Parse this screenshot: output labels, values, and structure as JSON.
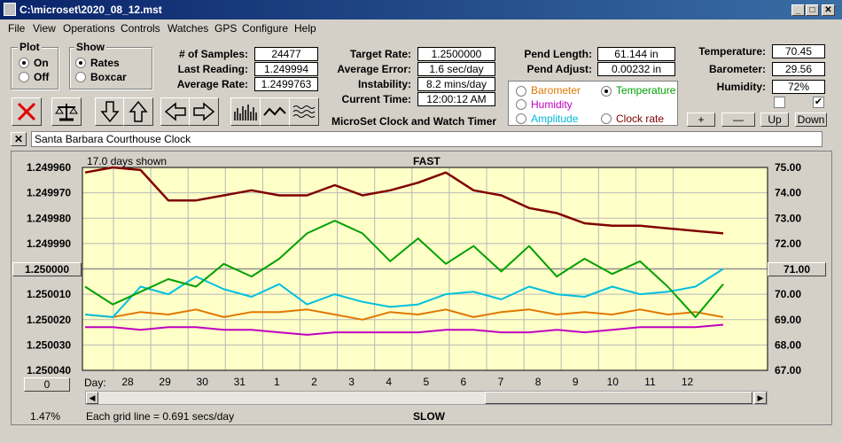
{
  "window": {
    "title": "C:\\microset\\2020_08_12.mst"
  },
  "menu": [
    "File",
    "View",
    "Operations",
    "Controls",
    "Watches",
    "GPS",
    "Configure",
    "Help"
  ],
  "plot_group": {
    "title": "Plot",
    "on_label": "On",
    "off_label": "Off",
    "selected": "On"
  },
  "show_group": {
    "title": "Show",
    "rates_label": "Rates",
    "boxcar_label": "Boxcar",
    "selected": "Rates"
  },
  "stats": {
    "samples_label": "# of Samples:",
    "samples": "24477",
    "last_label": "Last Reading:",
    "last": "1.249994",
    "avg_label": "Average Rate:",
    "avg": "1.2499763",
    "target_label": "Target Rate:",
    "target": "1.2500000",
    "err_label": "Average Error:",
    "err": "1.6 sec/day",
    "inst_label": "Instability:",
    "inst": "8.2 mins/day",
    "time_label": "Current Time:",
    "time": "12:00:12 AM",
    "pend_len_label": "Pend Length:",
    "pend_len": "61.144 in",
    "pend_adj_label": "Pend Adjust:",
    "pend_adj": "0.00232 in",
    "temp_label": "Temperature:",
    "temp": "70.45",
    "baro_label": "Barometer:",
    "baro": "29.56",
    "hum_label": "Humidity:",
    "hum": "72%"
  },
  "app_caption": "MicroSet Clock and Watch Timer",
  "legend_options": [
    {
      "label": "Barometer",
      "color": "#e07800",
      "selected": false
    },
    {
      "label": "Temperature",
      "color": "#00a000",
      "selected": true
    },
    {
      "label": "Humidity",
      "color": "#c000c0",
      "selected": false
    },
    {
      "label": "Clock rate",
      "color": "#800000",
      "selected": false
    },
    {
      "label": "Amplitude",
      "color": "#00c0e0",
      "selected": false
    }
  ],
  "side_buttons": {
    "plus": "+",
    "minus": "—",
    "up": "Up",
    "down": "Down"
  },
  "clock_name": "Santa Barbara Courthouse Clock",
  "chart_top_label": "FAST",
  "chart_bottom_label": "SLOW",
  "days_shown": "17.0 days shown",
  "grid_note": "Each grid line = 0.691 secs/day",
  "left_button": "1.250000",
  "right_button": "71.00",
  "zero_button": "0",
  "percent": "1.47%",
  "day_label": "Day:",
  "chart_data": {
    "type": "line",
    "y_left_ticks": [
      "1.249960",
      "1.249970",
      "1.249980",
      "1.249990",
      "1.250000",
      "1.250010",
      "1.250020",
      "1.250030",
      "1.250040"
    ],
    "y_right_ticks": [
      "75.00",
      "74.00",
      "73.00",
      "72.00",
      "71.00",
      "70.00",
      "69.00",
      "68.00",
      "67.00"
    ],
    "x_ticks": [
      "28",
      "29",
      "30",
      "31",
      "1",
      "2",
      "3",
      "4",
      "5",
      "6",
      "7",
      "8",
      "9",
      "10",
      "11",
      "12"
    ],
    "ylim_left": [
      1.24996,
      1.25004
    ],
    "ylim_right": [
      67,
      75
    ],
    "grid": true,
    "series": [
      {
        "name": "Clock rate",
        "color": "#800000",
        "axis": "left",
        "values": [
          1.249962,
          1.24996,
          1.249961,
          1.249973,
          1.249973,
          1.249971,
          1.249969,
          1.249971,
          1.249971,
          1.249967,
          1.249971,
          1.249969,
          1.249966,
          1.249962,
          1.249969,
          1.249971,
          1.249976,
          1.249978,
          1.249982,
          1.249983,
          1.249983,
          1.249984,
          1.249985,
          1.249986
        ]
      },
      {
        "name": "Temperature",
        "color": "#00a000",
        "axis": "right",
        "values": [
          70.3,
          69.6,
          70.1,
          70.6,
          70.3,
          71.2,
          70.7,
          71.4,
          72.4,
          72.9,
          72.4,
          71.3,
          72.2,
          71.2,
          71.9,
          70.9,
          71.9,
          70.7,
          71.4,
          70.8,
          71.3,
          70.3,
          69.1,
          70.4
        ]
      },
      {
        "name": "Amplitude",
        "color": "#00c0e0",
        "axis": "right",
        "values": [
          69.2,
          69.1,
          70.3,
          70.0,
          70.7,
          70.2,
          69.9,
          70.4,
          69.6,
          70.0,
          69.7,
          69.5,
          69.6,
          70.0,
          70.1,
          69.8,
          70.3,
          70.0,
          69.9,
          70.3,
          70.0,
          70.1,
          70.3,
          71.0
        ]
      },
      {
        "name": "Barometer",
        "color": "#e07800",
        "axis": "right",
        "values": [
          69.2,
          69.1,
          69.3,
          69.2,
          69.4,
          69.1,
          69.3,
          69.3,
          69.4,
          69.2,
          69.0,
          69.3,
          69.2,
          69.4,
          69.1,
          69.3,
          69.4,
          69.2,
          69.3,
          69.2,
          69.4,
          69.2,
          69.3,
          69.1
        ]
      },
      {
        "name": "Humidity",
        "color": "#c000c0",
        "axis": "right",
        "values": [
          68.7,
          68.7,
          68.6,
          68.7,
          68.7,
          68.6,
          68.6,
          68.5,
          68.4,
          68.5,
          68.5,
          68.5,
          68.5,
          68.6,
          68.6,
          68.5,
          68.5,
          68.6,
          68.5,
          68.6,
          68.7,
          68.7,
          68.7,
          68.8
        ]
      }
    ]
  }
}
